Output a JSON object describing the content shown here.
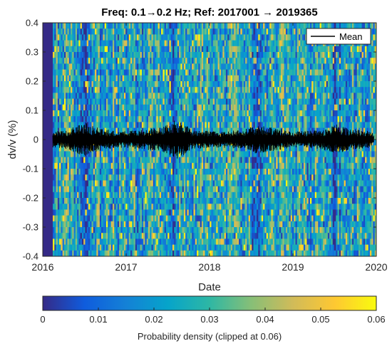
{
  "chart_data": {
    "type": "heatmap",
    "title": "Freq: 0.1→0.2 Hz; Ref: 2017001 → 2019365",
    "xlabel": "Date",
    "ylabel": "dv/v (%)",
    "xlim": [
      2016,
      2020
    ],
    "ylim": [
      -0.4,
      0.4
    ],
    "x_ticks": [
      "2016",
      "2017",
      "2018",
      "2019",
      "2020"
    ],
    "y_ticks": [
      "0.4",
      "0.3",
      "0.2",
      "0.1",
      "0",
      "-0.1",
      "-0.2",
      "-0.3",
      "-0.4"
    ],
    "y_tick_values": [
      0.4,
      0.3,
      0.2,
      0.1,
      0,
      -0.1,
      -0.2,
      -0.3,
      -0.4
    ],
    "data_start": 2016.12,
    "legend": {
      "entries": [
        "Mean"
      ],
      "placement": "top-right"
    },
    "colorbar": {
      "label": "Probability density (clipped at 0.06)",
      "range": [
        0,
        0.06
      ],
      "ticks": [
        "0",
        "0.01",
        "0.02",
        "0.03",
        "0.04",
        "0.05",
        "0.06"
      ],
      "tick_values": [
        0,
        0.01,
        0.02,
        0.03,
        0.04,
        0.05,
        0.06
      ],
      "colormap": "parula",
      "placement": "bottom",
      "stops": [
        "#352a87",
        "#0f5cdd",
        "#1481d6",
        "#06a4ca",
        "#2eb7a4",
        "#87bf77",
        "#d1bb59",
        "#fec832",
        "#f9fb0e"
      ]
    },
    "series": [
      {
        "name": "Mean",
        "color": "#000000",
        "style": "line",
        "envelope": [
          {
            "x": 2016.12,
            "half_width": 0.025
          },
          {
            "x": 2016.3,
            "half_width": 0.03
          },
          {
            "x": 2016.5,
            "half_width": 0.055
          },
          {
            "x": 2016.62,
            "half_width": 0.04
          },
          {
            "x": 2016.9,
            "half_width": 0.025
          },
          {
            "x": 2017.2,
            "half_width": 0.03
          },
          {
            "x": 2017.45,
            "half_width": 0.04
          },
          {
            "x": 2017.6,
            "half_width": 0.065
          },
          {
            "x": 2017.8,
            "half_width": 0.03
          },
          {
            "x": 2018.1,
            "half_width": 0.025
          },
          {
            "x": 2018.4,
            "half_width": 0.03
          },
          {
            "x": 2018.55,
            "half_width": 0.045
          },
          {
            "x": 2018.7,
            "half_width": 0.04
          },
          {
            "x": 2019.0,
            "half_width": 0.025
          },
          {
            "x": 2019.35,
            "half_width": 0.03
          },
          {
            "x": 2019.5,
            "half_width": 0.05
          },
          {
            "x": 2019.65,
            "half_width": 0.035
          },
          {
            "x": 2019.97,
            "half_width": 0.025
          }
        ]
      }
    ],
    "high_density_bands": [
      2016.5,
      2017.58,
      2018.58,
      2019.5
    ],
    "grid": false
  }
}
